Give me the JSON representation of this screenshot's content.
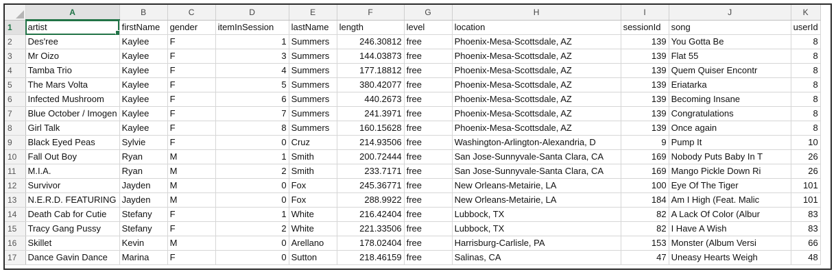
{
  "columns": [
    "A",
    "B",
    "C",
    "D",
    "E",
    "F",
    "G",
    "H",
    "I",
    "J",
    "K"
  ],
  "row_numbers": [
    "1",
    "2",
    "3",
    "4",
    "5",
    "6",
    "7",
    "8",
    "9",
    "10",
    "11",
    "12",
    "13",
    "14",
    "15",
    "16",
    "17"
  ],
  "headers": [
    "artist",
    "firstName",
    "gender",
    "itemInSession",
    "lastName",
    "length",
    "level",
    "location",
    "sessionId",
    "song",
    "userId"
  ],
  "rows": [
    [
      "Des'ree",
      "Kaylee",
      "F",
      "1",
      "Summers",
      "246.30812",
      "free",
      "Phoenix-Mesa-Scottsdale, AZ",
      "139",
      "You Gotta Be",
      "8"
    ],
    [
      "Mr Oizo",
      "Kaylee",
      "F",
      "3",
      "Summers",
      "144.03873",
      "free",
      "Phoenix-Mesa-Scottsdale, AZ",
      "139",
      "Flat 55",
      "8"
    ],
    [
      "Tamba Trio",
      "Kaylee",
      "F",
      "4",
      "Summers",
      "177.18812",
      "free",
      "Phoenix-Mesa-Scottsdale, AZ",
      "139",
      "Quem Quiser Encontr",
      "8"
    ],
    [
      "The Mars Volta",
      "Kaylee",
      "F",
      "5",
      "Summers",
      "380.42077",
      "free",
      "Phoenix-Mesa-Scottsdale, AZ",
      "139",
      "Eriatarka",
      "8"
    ],
    [
      "Infected Mushroom",
      "Kaylee",
      "F",
      "6",
      "Summers",
      "440.2673",
      "free",
      "Phoenix-Mesa-Scottsdale, AZ",
      "139",
      "Becoming Insane",
      "8"
    ],
    [
      "Blue October / Imogen",
      "Kaylee",
      "F",
      "7",
      "Summers",
      "241.3971",
      "free",
      "Phoenix-Mesa-Scottsdale, AZ",
      "139",
      "Congratulations",
      "8"
    ],
    [
      "Girl Talk",
      "Kaylee",
      "F",
      "8",
      "Summers",
      "160.15628",
      "free",
      "Phoenix-Mesa-Scottsdale, AZ",
      "139",
      "Once again",
      "8"
    ],
    [
      "Black Eyed Peas",
      "Sylvie",
      "F",
      "0",
      "Cruz",
      "214.93506",
      "free",
      "Washington-Arlington-Alexandria, D",
      "9",
      "Pump It",
      "10"
    ],
    [
      "Fall Out Boy",
      "Ryan",
      "M",
      "1",
      "Smith",
      "200.72444",
      "free",
      "San Jose-Sunnyvale-Santa Clara, CA",
      "169",
      "Nobody Puts Baby In T",
      "26"
    ],
    [
      "M.I.A.",
      "Ryan",
      "M",
      "2",
      "Smith",
      "233.7171",
      "free",
      "San Jose-Sunnyvale-Santa Clara, CA",
      "169",
      "Mango Pickle Down Ri",
      "26"
    ],
    [
      "Survivor",
      "Jayden",
      "M",
      "0",
      "Fox",
      "245.36771",
      "free",
      "New Orleans-Metairie, LA",
      "100",
      "Eye Of The Tiger",
      "101"
    ],
    [
      "N.E.R.D. FEATURING",
      "Jayden",
      "M",
      "0",
      "Fox",
      "288.9922",
      "free",
      "New Orleans-Metairie, LA",
      "184",
      "Am I High (Feat. Malic",
      "101"
    ],
    [
      "Death Cab for Cutie",
      "Stefany",
      "F",
      "1",
      "White",
      "216.42404",
      "free",
      "Lubbock, TX",
      "82",
      "A Lack Of Color (Albur",
      "83"
    ],
    [
      "Tracy Gang Pussy",
      "Stefany",
      "F",
      "2",
      "White",
      "221.33506",
      "free",
      "Lubbock, TX",
      "82",
      "I Have A Wish",
      "83"
    ],
    [
      "Skillet",
      "Kevin",
      "M",
      "0",
      "Arellano",
      "178.02404",
      "free",
      "Harrisburg-Carlisle, PA",
      "153",
      "Monster (Album Versi",
      "66"
    ],
    [
      "Dance Gavin Dance",
      "Marina",
      "F",
      "0",
      "Sutton",
      "218.46159",
      "free",
      "Salinas, CA",
      "47",
      "Uneasy Hearts Weigh",
      "48"
    ]
  ],
  "numeric_columns": [
    3,
    5,
    8,
    10
  ],
  "colors": {
    "accent": "#217346",
    "header_bg": "#f2f2f2",
    "grid": "#d6d6d6"
  }
}
